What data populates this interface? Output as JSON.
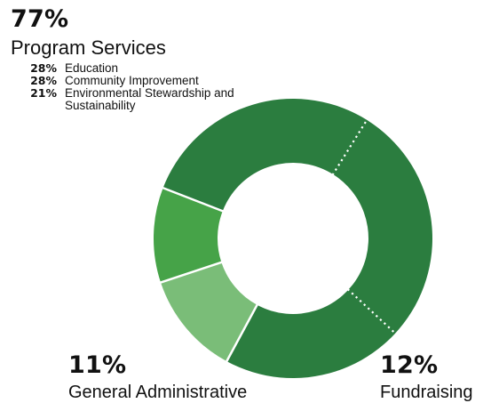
{
  "chart_data": {
    "type": "pie",
    "style": "donut",
    "categories": [
      "Program Services",
      "Fundraising",
      "General Administrative"
    ],
    "values": [
      77,
      12,
      11
    ],
    "value_labels": [
      "77%",
      "12%",
      "11%"
    ],
    "breakdown": {
      "parent": "Program Services",
      "items": [
        {
          "pct_label": "28%",
          "name": "Education",
          "value": 28
        },
        {
          "pct_label": "28%",
          "name": "Community Improvement",
          "value": 28
        },
        {
          "pct_label": "21%",
          "name": "Environmental Stewardship and Sustainability",
          "value": 21
        }
      ]
    },
    "colors": {
      "Program Services": "#2b7d3f",
      "General Administrative": "#46a348",
      "Fundraising": "#7abd78",
      "separator": "#ffffff"
    },
    "legend": "none"
  },
  "labels": {
    "program": {
      "pct": "77%",
      "name": "Program Services"
    },
    "subs": [
      {
        "pct": "28%",
        "name": "Education"
      },
      {
        "pct": "28%",
        "name": "Community Improvement"
      },
      {
        "pct": "21%",
        "name": "Environmental Stewardship and Sustainability"
      }
    ],
    "admin": {
      "pct": "11%",
      "name": "General Administrative"
    },
    "fund": {
      "pct": "12%",
      "name": "Fundraising"
    }
  }
}
